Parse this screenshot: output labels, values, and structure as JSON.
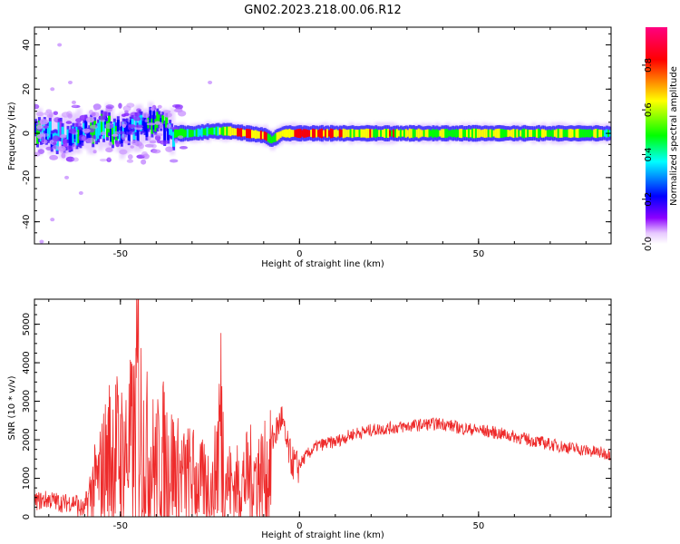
{
  "title": "GN02.2023.218.00.06.R12",
  "colors": {
    "snr_line": "#ee2b2b",
    "colorbar": [
      "#ffffff",
      "#8c00ff",
      "#0000ff",
      "#00ffff",
      "#00ff00",
      "#ffff00",
      "#ff0000",
      "#ff0080"
    ]
  },
  "chart_data": [
    {
      "type": "heatmap",
      "title": "",
      "xlabel": "Height of straight line (km)",
      "ylabel": "Frequency (Hz)",
      "xlim": [
        -74,
        87
      ],
      "ylim": [
        -50,
        48
      ],
      "x_ticks": [
        -50,
        0,
        50
      ],
      "y_ticks": [
        40,
        20,
        0,
        -20,
        -40
      ],
      "x_tick_labels": [
        "-50",
        "0",
        "50"
      ],
      "y_tick_labels": [
        "40",
        "20",
        "0",
        "-20",
        "-40"
      ],
      "grid": false,
      "description_of_ridge": "spectral energy concentrated near 0 Hz; scattered from -74 to -35 km, narrow stable line from -35 to 87 km",
      "ridge": {
        "x": [
          -74,
          -70,
          -66,
          -62,
          -58,
          -54,
          -50,
          -46,
          -42,
          -38,
          -35,
          -30,
          -25,
          -20,
          -15,
          -10,
          -8,
          -5,
          0,
          10,
          20,
          30,
          40,
          50,
          60,
          70,
          80,
          87
        ],
        "frequency_hz": [
          1,
          0,
          -2,
          1,
          0,
          3,
          -1,
          2,
          4,
          3,
          0,
          0,
          1,
          1,
          0,
          -1,
          -3,
          0,
          0,
          0,
          0,
          0,
          0,
          0,
          0,
          0,
          0,
          0
        ],
        "amplitude": [
          0.4,
          0.5,
          0.35,
          0.45,
          0.5,
          0.45,
          0.5,
          0.4,
          0.55,
          0.5,
          0.6,
          0.6,
          0.55,
          0.7,
          0.85,
          0.85,
          0.6,
          0.85,
          0.9,
          0.8,
          0.75,
          0.75,
          0.65,
          0.7,
          0.75,
          0.7,
          0.7,
          0.6
        ]
      },
      "outliers": [
        {
          "x": -67,
          "y": 40
        },
        {
          "x": -69,
          "y": 20
        },
        {
          "x": -64,
          "y": 23
        },
        {
          "x": -63,
          "y": 14
        },
        {
          "x": -65,
          "y": -20
        },
        {
          "x": -61,
          "y": -27
        },
        {
          "x": -69,
          "y": -39
        },
        {
          "x": -72,
          "y": -49
        },
        {
          "x": -25,
          "y": 23
        },
        {
          "x": -41,
          "y": 11
        },
        {
          "x": -39,
          "y": 12
        }
      ]
    },
    {
      "type": "colorbar",
      "label": "Normalized spectral amplitude",
      "range": [
        0,
        0.97
      ],
      "ticks": [
        0.0,
        0.2,
        0.4,
        0.6,
        0.8
      ],
      "tick_labels": [
        "0.0",
        "0.2",
        "0.4",
        "0.6",
        "0.8"
      ]
    },
    {
      "type": "line",
      "title": "",
      "xlabel": "Height of straight line (km)",
      "ylabel": "SNR (10 * v/v)",
      "xlim": [
        -74,
        87
      ],
      "ylim": [
        0,
        5650
      ],
      "x_ticks": [
        -50,
        0,
        50
      ],
      "y_ticks": [
        0,
        1000,
        2000,
        3000,
        4000,
        5000
      ],
      "x_tick_labels": [
        "-50",
        "0",
        "50"
      ],
      "y_tick_labels": [
        "0",
        "1000",
        "2000",
        "3000",
        "4000",
        "5000"
      ],
      "grid": false,
      "series": [
        {
          "name": "",
          "x": [
            -74,
            -70,
            -66,
            -62,
            -60,
            -58,
            -56,
            -54,
            -52,
            -50,
            -48,
            -46,
            -45,
            -44,
            -42,
            -40,
            -38,
            -36,
            -34,
            -32,
            -30,
            -28,
            -26,
            -24,
            -22,
            -21,
            -20,
            -18,
            -16,
            -14,
            -12,
            -10,
            -8,
            -6,
            -5,
            -4,
            -2,
            0,
            2,
            5,
            10,
            15,
            20,
            25,
            30,
            35,
            40,
            45,
            50,
            55,
            60,
            65,
            70,
            75,
            80,
            85,
            87
          ],
          "values": [
            400,
            450,
            350,
            400,
            300,
            1200,
            1600,
            2400,
            3000,
            2600,
            2800,
            3300,
            5600,
            3200,
            2600,
            2200,
            2600,
            2300,
            1900,
            1700,
            1800,
            1400,
            1500,
            1100,
            4200,
            2000,
            1500,
            1300,
            1500,
            1700,
            1800,
            1750,
            2000,
            2400,
            2700,
            2100,
            1500,
            1350,
            1600,
            1850,
            1950,
            2150,
            2250,
            2300,
            2350,
            2400,
            2420,
            2300,
            2250,
            2180,
            2080,
            1980,
            1880,
            1800,
            1720,
            1650,
            1630
          ]
        }
      ]
    }
  ]
}
